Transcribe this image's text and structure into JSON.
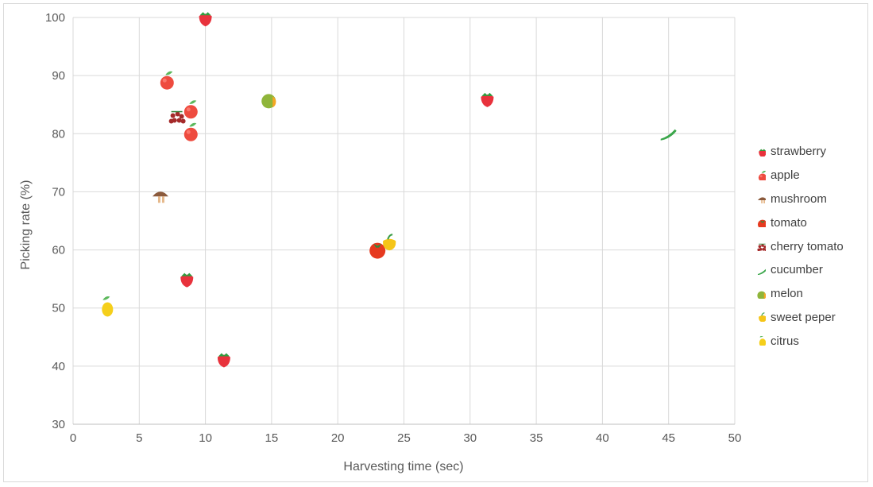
{
  "chart_data": {
    "type": "scatter",
    "title": "",
    "xlabel": "Harvesting time (sec)",
    "ylabel": "Picking rate (%)",
    "xlim": [
      0,
      50
    ],
    "ylim": [
      30,
      100
    ],
    "x_ticks": [
      0,
      5,
      10,
      15,
      20,
      25,
      30,
      35,
      40,
      45,
      50
    ],
    "y_ticks": [
      30,
      40,
      50,
      60,
      70,
      80,
      90,
      100
    ],
    "grid": true,
    "legend_position": "right",
    "series": [
      {
        "name": "strawberry",
        "icon": "strawberry-icon",
        "color": "#e8323c",
        "points": [
          [
            10.0,
            99.7
          ],
          [
            31.3,
            85.8
          ],
          [
            8.6,
            54.8
          ],
          [
            11.4,
            41.0
          ]
        ]
      },
      {
        "name": "apple",
        "icon": "apple-icon",
        "color": "#ee4b3f",
        "points": [
          [
            7.1,
            88.9
          ],
          [
            8.9,
            83.9
          ],
          [
            8.9,
            80.0
          ]
        ]
      },
      {
        "name": "mushroom",
        "icon": "mushroom-icon",
        "color": "#8b5a3c",
        "points": [
          [
            6.6,
            69.2
          ]
        ]
      },
      {
        "name": "tomato",
        "icon": "tomato-icon",
        "color": "#e63a1f",
        "points": [
          [
            23.0,
            60.0
          ]
        ]
      },
      {
        "name": "cherry tomato",
        "icon": "cherry-tomato-icon",
        "color": "#a52a2a",
        "points": [
          [
            7.9,
            82.7
          ]
        ]
      },
      {
        "name": "cucumber",
        "icon": "cucumber-icon",
        "color": "#3aa64a",
        "points": [
          [
            45.0,
            79.8
          ]
        ]
      },
      {
        "name": "melon",
        "icon": "melon-icon",
        "color": "#8fb53a",
        "points": [
          [
            14.9,
            85.6
          ]
        ]
      },
      {
        "name": "sweet peper",
        "icon": "sweet-pepper-icon",
        "color": "#f5c518",
        "points": [
          [
            23.9,
            61.0
          ]
        ]
      },
      {
        "name": "citrus",
        "icon": "citrus-icon",
        "color": "#f5cf1b",
        "points": [
          [
            2.6,
            49.9
          ]
        ]
      }
    ]
  }
}
